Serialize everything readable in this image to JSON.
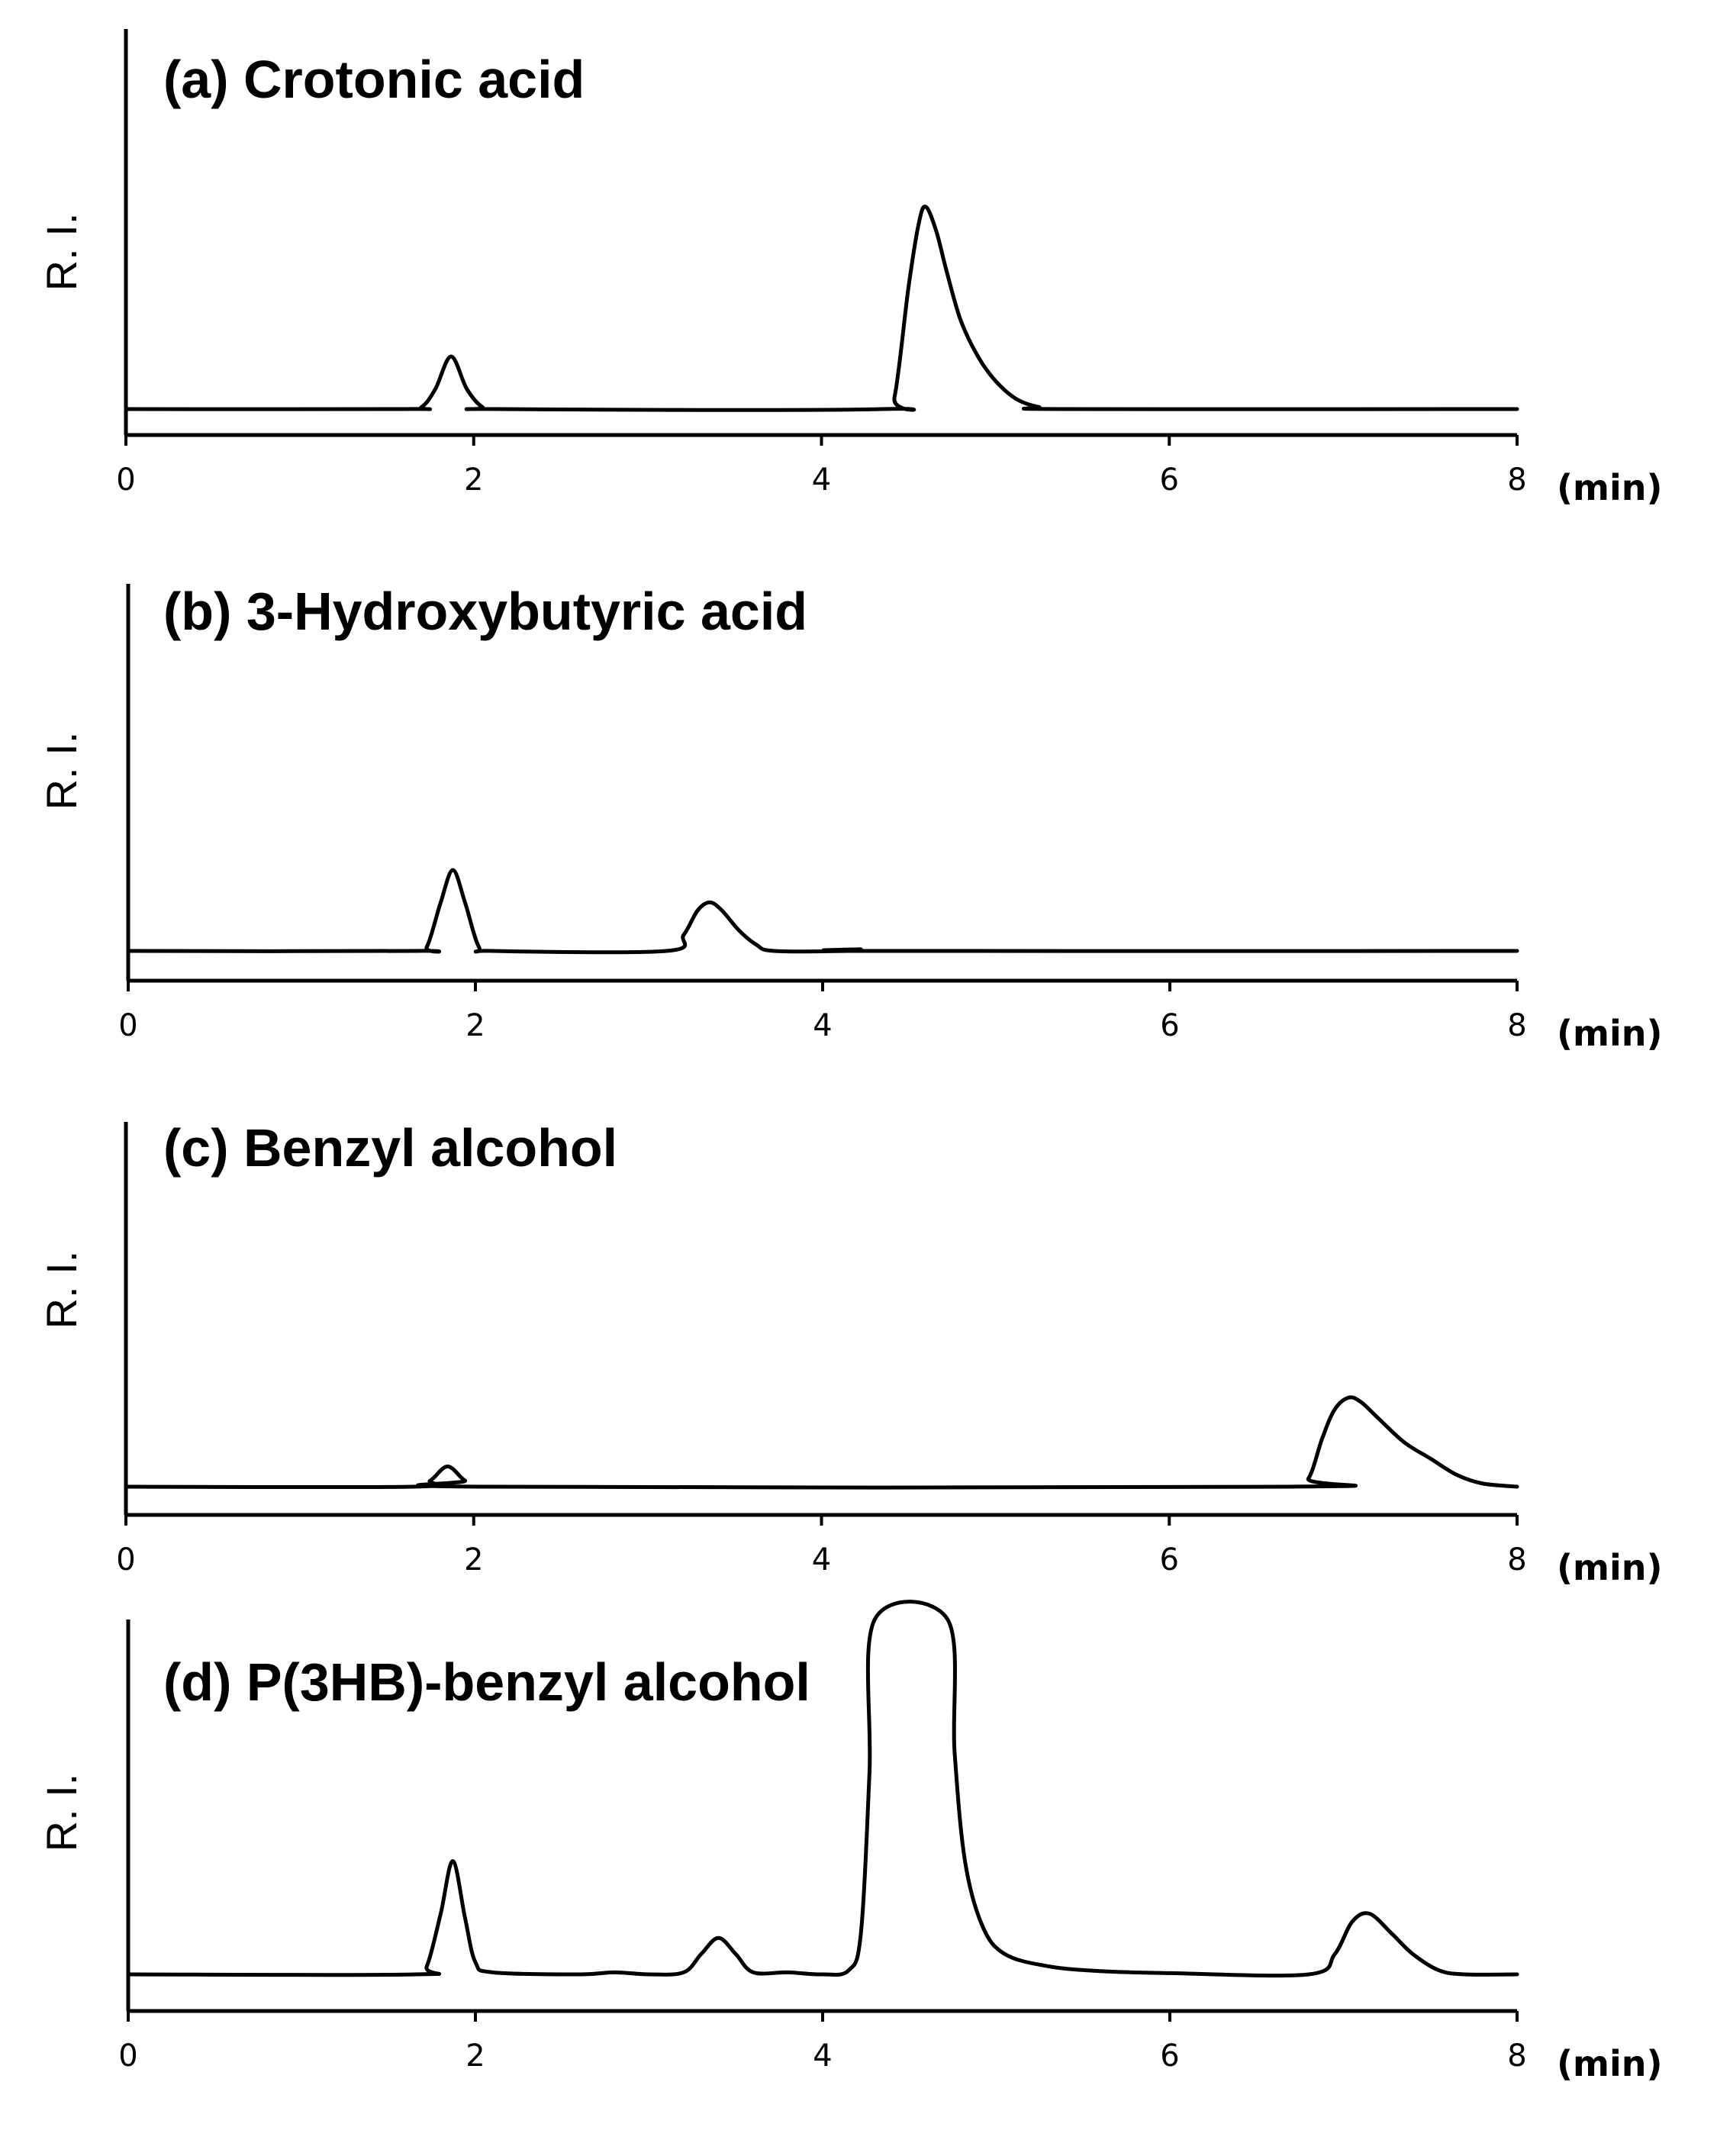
{
  "chart_data": [
    {
      "type": "line",
      "title": "(a) Crotonic acid",
      "xlabel": "(min)",
      "ylabel": "R. I.",
      "xlim": [
        0,
        8
      ],
      "ylim": [
        0,
        1.0
      ],
      "xticks": [
        "0",
        "2",
        "4",
        "6",
        "8"
      ],
      "grid": false,
      "series": [
        {
          "values": [
            [
              0,
              0
            ],
            [
              1.6,
              0
            ],
            [
              1.7,
              0.005
            ],
            [
              1.78,
              0.05
            ],
            [
              1.87,
              0.13
            ],
            [
              1.96,
              0.05
            ],
            [
              2.05,
              0.005
            ],
            [
              2.15,
              0
            ],
            [
              4.35,
              0
            ],
            [
              4.42,
              0.03
            ],
            [
              4.5,
              0.3
            ],
            [
              4.56,
              0.46
            ],
            [
              4.6,
              0.5
            ],
            [
              4.66,
              0.44
            ],
            [
              4.72,
              0.34
            ],
            [
              4.8,
              0.22
            ],
            [
              4.9,
              0.13
            ],
            [
              5.0,
              0.07
            ],
            [
              5.12,
              0.025
            ],
            [
              5.25,
              0.005
            ],
            [
              5.4,
              0
            ],
            [
              8,
              0
            ]
          ]
        }
      ]
    },
    {
      "type": "line",
      "title": "(b) 3-Hydroxybutyric acid",
      "xlabel": "(min)",
      "ylabel": "R. I.",
      "xlim": [
        0,
        8
      ],
      "ylim": [
        0,
        1.0
      ],
      "xticks": [
        "0",
        "2",
        "4",
        "6",
        "8"
      ],
      "grid": false,
      "series": [
        {
          "values": [
            [
              0,
              0
            ],
            [
              1.65,
              0
            ],
            [
              1.72,
              0.01
            ],
            [
              1.8,
              0.12
            ],
            [
              1.87,
              0.2
            ],
            [
              1.94,
              0.12
            ],
            [
              2.02,
              0.01
            ],
            [
              2.1,
              0
            ],
            [
              3.1,
              0
            ],
            [
              3.2,
              0.04
            ],
            [
              3.28,
              0.1
            ],
            [
              3.35,
              0.12
            ],
            [
              3.42,
              0.1
            ],
            [
              3.52,
              0.05
            ],
            [
              3.62,
              0.015
            ],
            [
              3.72,
              0
            ],
            [
              4.15,
              0
            ],
            [
              4.22,
              0.004
            ],
            [
              4.3,
              0
            ],
            [
              8,
              0
            ]
          ]
        }
      ]
    },
    {
      "type": "line",
      "title": "(c) Benzyl alcohol",
      "xlabel": "(min)",
      "ylabel": "R. I.",
      "xlim": [
        0,
        8
      ],
      "ylim": [
        0,
        1.0
      ],
      "xticks": [
        "0",
        "2",
        "4",
        "6",
        "8"
      ],
      "grid": false,
      "series": [
        {
          "values": [
            [
              0,
              0
            ],
            [
              1.65,
              0
            ],
            [
              1.75,
              0.015
            ],
            [
              1.85,
              0.05
            ],
            [
              1.95,
              0.015
            ],
            [
              2.05,
              0
            ],
            [
              6.7,
              0
            ],
            [
              6.8,
              0.02
            ],
            [
              6.88,
              0.12
            ],
            [
              6.95,
              0.19
            ],
            [
              7.03,
              0.22
            ],
            [
              7.1,
              0.21
            ],
            [
              7.2,
              0.17
            ],
            [
              7.35,
              0.11
            ],
            [
              7.5,
              0.07
            ],
            [
              7.65,
              0.03
            ],
            [
              7.8,
              0.008
            ],
            [
              8,
              0
            ]
          ]
        }
      ]
    },
    {
      "type": "line",
      "title": "(d) P(3HB)-benzyl alcohol",
      "xlabel": "(min)",
      "ylabel": "R. I.",
      "xlim": [
        0,
        8
      ],
      "ylim": [
        0,
        1.0
      ],
      "xticks": [
        "0",
        "2",
        "4",
        "6",
        "8"
      ],
      "grid": false,
      "series": [
        {
          "values": [
            [
              0,
              0
            ],
            [
              1.65,
              0
            ],
            [
              1.72,
              0.02
            ],
            [
              1.8,
              0.15
            ],
            [
              1.87,
              0.28
            ],
            [
              1.94,
              0.14
            ],
            [
              2.0,
              0.03
            ],
            [
              2.1,
              0.005
            ],
            [
              2.6,
              0
            ],
            [
              2.8,
              0.005
            ],
            [
              3.0,
              0
            ],
            [
              3.2,
              0.005
            ],
            [
              3.3,
              0.05
            ],
            [
              3.4,
              0.09
            ],
            [
              3.5,
              0.05
            ],
            [
              3.6,
              0.005
            ],
            [
              3.8,
              0.005
            ],
            [
              4.0,
              0
            ],
            [
              4.15,
              0.01
            ],
            [
              4.22,
              0.1
            ],
            [
              4.27,
              0.5
            ],
            [
              4.3,
              1.05
            ],
            [
              4.72,
              1.05
            ],
            [
              4.76,
              0.55
            ],
            [
              4.82,
              0.28
            ],
            [
              4.92,
              0.12
            ],
            [
              5.05,
              0.05
            ],
            [
              5.3,
              0.02
            ],
            [
              5.6,
              0.008
            ],
            [
              6.0,
              0.003
            ],
            [
              6.8,
              0
            ],
            [
              6.95,
              0.05
            ],
            [
              7.05,
              0.13
            ],
            [
              7.15,
              0.15
            ],
            [
              7.28,
              0.1
            ],
            [
              7.4,
              0.05
            ],
            [
              7.55,
              0.01
            ],
            [
              7.7,
              0
            ],
            [
              8,
              0
            ]
          ]
        }
      ]
    }
  ]
}
